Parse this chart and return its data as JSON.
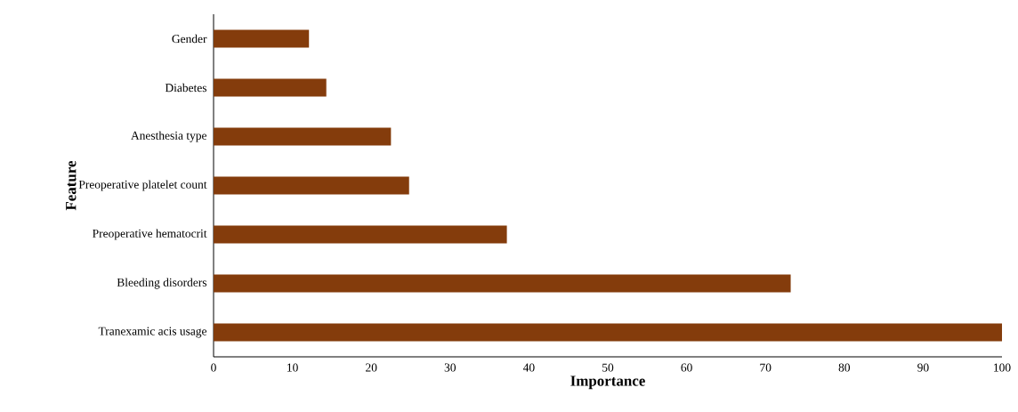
{
  "chart_data": {
    "type": "bar",
    "orientation": "horizontal",
    "categories": [
      "Gender",
      "Diabetes",
      "Anesthesia type",
      "Preoperative platelet count",
      "Preoperative hematocrit",
      "Bleeding disorders",
      "Tranexamic acis usage"
    ],
    "values": [
      12.1,
      14.3,
      22.5,
      24.8,
      37.2,
      73.2,
      100
    ],
    "color": "#843c0c",
    "xlim": [
      0,
      100
    ],
    "xticks": [
      0,
      10,
      20,
      30,
      40,
      50,
      60,
      70,
      80,
      90,
      100
    ],
    "xlabel": "Importance",
    "ylabel": "Feature"
  }
}
